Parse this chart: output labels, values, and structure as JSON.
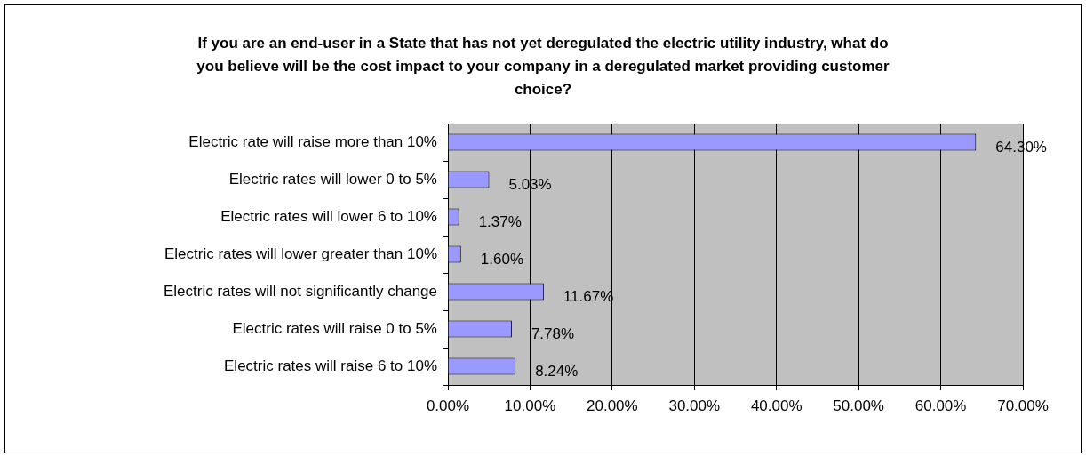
{
  "chart_data": {
    "type": "bar",
    "orientation": "horizontal",
    "title": "If you are an end-user in a State that has not yet deregulated the electric utility industry, what do you believe will be the cost impact to your company in a deregulated market providing customer choice?",
    "categories": [
      "Electric rate will raise more than 10%",
      "Electric rates will lower 0 to 5%",
      "Electric rates will lower 6 to 10%",
      "Electric rates will lower greater than 10%",
      "Electric rates will not significantly change",
      "Electric rates will raise 0 to 5%",
      "Electric rates will raise 6 to 10%"
    ],
    "values": [
      64.3,
      5.03,
      1.37,
      1.6,
      11.67,
      7.78,
      8.24
    ],
    "value_labels": [
      "64.30%",
      "5.03%",
      "1.37%",
      "1.60%",
      "11.67%",
      "7.78%",
      "8.24%"
    ],
    "color": "#9999ff",
    "xlim": [
      0,
      70
    ],
    "xticks": [
      {
        "value": 0,
        "label": "0.00%"
      },
      {
        "value": 10,
        "label": "10.00%"
      },
      {
        "value": 20,
        "label": "20.00%"
      },
      {
        "value": 30,
        "label": "30.00%"
      },
      {
        "value": 40,
        "label": "40.00%"
      },
      {
        "value": 50,
        "label": "50.00%"
      },
      {
        "value": 60,
        "label": "60.00%"
      },
      {
        "value": 70,
        "label": "70.00%"
      }
    ],
    "grid": "x"
  }
}
